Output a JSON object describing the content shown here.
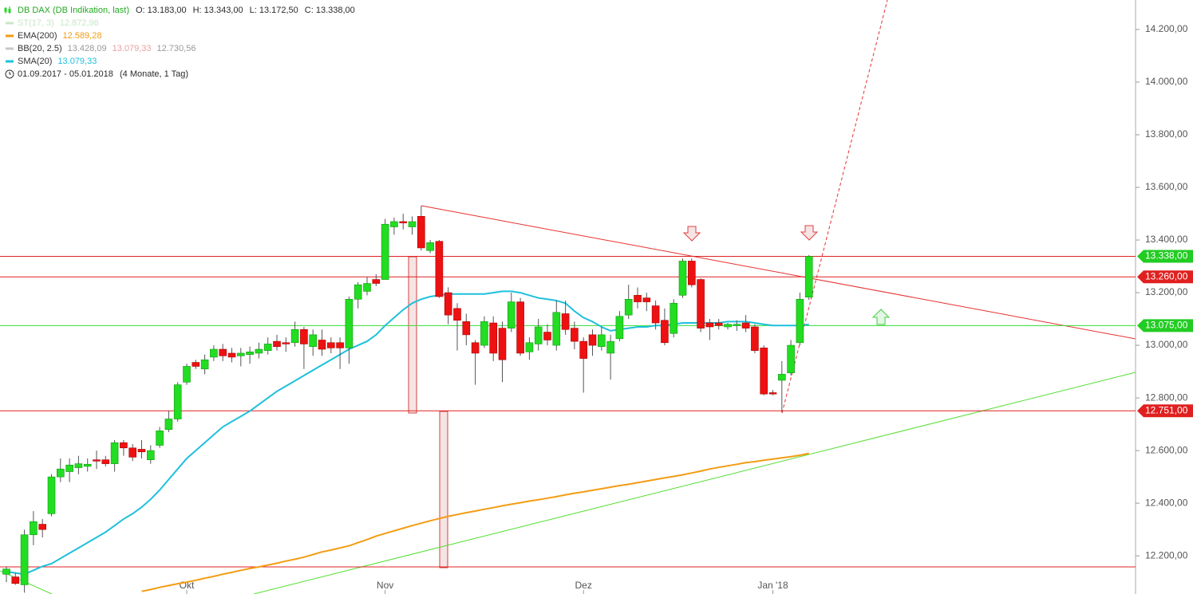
{
  "chart_data": {
    "type": "candlestick",
    "title": "DB DAX (DB Indikation, last)",
    "ohlc_labels": [
      "O: 13.183,00",
      "H: 13.343,00",
      "L: 13.172,50",
      "C: 13.338,00"
    ],
    "indicators": [
      {
        "name": "ST(17, 3)",
        "label": "12.872,96",
        "color": "#c8e6c8"
      },
      {
        "name": "EMA(200)",
        "label": "12.589,28",
        "color": "#f39c12"
      },
      {
        "name": "BB(20, 2.5)",
        "labels": [
          "13.428,09",
          "13.079,33",
          "12.730,56"
        ],
        "color": "#c8c8c8"
      },
      {
        "name": "SMA(20)",
        "label": "13.079,33",
        "color": "#1ec0dc"
      }
    ],
    "period": "01.09.2017 - 05.01.2018",
    "period_note": "(4 Monate, 1 Tag)",
    "categories": [
      null,
      null,
      null,
      null,
      null,
      null,
      null,
      null,
      null,
      null,
      null,
      null,
      null,
      null,
      null,
      null,
      null,
      null,
      null,
      null,
      "Okt",
      null,
      null,
      null,
      null,
      null,
      null,
      null,
      null,
      null,
      null,
      null,
      null,
      null,
      null,
      null,
      null,
      null,
      null,
      null,
      null,
      null,
      "Nov",
      null,
      null,
      null,
      null,
      null,
      null,
      null,
      null,
      null,
      null,
      null,
      null,
      null,
      null,
      null,
      null,
      null,
      null,
      null,
      null,
      null,
      "Dez",
      null,
      null,
      null,
      null,
      null,
      null,
      null,
      null,
      null,
      null,
      null,
      null,
      null,
      null,
      null,
      null,
      null,
      null,
      null,
      null,
      "Jan '18",
      null,
      null,
      null,
      null
    ],
    "open": [
      12130,
      12120,
      12090,
      12280,
      12320,
      12360,
      12500,
      12520,
      12535,
      12540,
      12565,
      12565,
      12550,
      12630,
      12610,
      12605,
      12565,
      12620,
      12680,
      12720,
      12860,
      12935,
      12910,
      12955,
      12985,
      12970,
      12960,
      12965,
      12970,
      12980,
      13015,
      13010,
      13010,
      13060,
      12995,
      13020,
      13010,
      13010,
      12990,
      13175,
      13205,
      13250,
      13250,
      13450,
      13470,
      13450,
      13490,
      13360,
      13395,
      13200,
      13140,
      13090,
      13010,
      13000,
      13085,
      13065,
      13065,
      13165,
      12975,
      13005,
      13050,
      13000,
      13120,
      13065,
      13015,
      13040,
      12995,
      12970,
      13025,
      13115,
      13190,
      13180,
      13150,
      13095,
      13045,
      13190,
      13320,
      13250,
      13085,
      13085,
      13070,
      13075,
      13085,
      13070,
      12990,
      12820,
      12867,
      12895,
      13010,
      13183
    ],
    "high": [
      12160,
      12135,
      12300,
      12370,
      12340,
      12510,
      12570,
      12570,
      12580,
      12570,
      12600,
      12580,
      12640,
      12640,
      12625,
      12640,
      12620,
      12690,
      12750,
      12860,
      12930,
      12945,
      12965,
      13000,
      13005,
      12990,
      12990,
      12995,
      13010,
      13030,
      13040,
      13030,
      13090,
      13070,
      13060,
      13060,
      13030,
      13030,
      13185,
      13240,
      13260,
      13270,
      13480,
      13485,
      13500,
      13490,
      13530,
      13400,
      13400,
      13220,
      13160,
      13120,
      13020,
      13110,
      13110,
      13090,
      13200,
      13180,
      13030,
      13100,
      13080,
      13170,
      13170,
      13090,
      13030,
      13060,
      13070,
      13040,
      13130,
      13230,
      13220,
      13200,
      13170,
      13140,
      13175,
      13330,
      13330,
      13255,
      13100,
      13100,
      13085,
      13095,
      13115,
      13080,
      13000,
      12830,
      12940,
      13020,
      13200,
      13343
    ],
    "low": [
      12100,
      12090,
      12060,
      12240,
      12270,
      12350,
      12480,
      12480,
      12510,
      12520,
      12530,
      12540,
      12520,
      12580,
      12560,
      12570,
      12550,
      12610,
      12670,
      12710,
      12850,
      12910,
      12890,
      12940,
      12940,
      12935,
      12920,
      12930,
      12950,
      12965,
      12980,
      12975,
      12995,
      12910,
      12960,
      12960,
      12970,
      12910,
      12930,
      13140,
      13190,
      13225,
      13250,
      13420,
      13440,
      13420,
      13360,
      13350,
      13180,
      13080,
      12980,
      13000,
      12850,
      12990,
      12940,
      12860,
      13050,
      12960,
      12945,
      12980,
      13000,
      12980,
      13040,
      12985,
      12820,
      12960,
      12980,
      12870,
      13015,
      13100,
      13140,
      13130,
      13060,
      13000,
      13030,
      13180,
      13220,
      13050,
      13020,
      13060,
      13060,
      13055,
      13050,
      12970,
      12810,
      12810,
      12745,
      12885,
      13000,
      13172.5
    ],
    "close": [
      12150,
      12095,
      12280,
      12330,
      12300,
      12500,
      12530,
      12545,
      12550,
      12548,
      12560,
      12550,
      12630,
      12610,
      12575,
      12595,
      12600,
      12675,
      12720,
      12850,
      12920,
      12920,
      12945,
      12985,
      12960,
      12955,
      12970,
      12975,
      12985,
      13005,
      12995,
      13005,
      13060,
      13005,
      13040,
      12985,
      12990,
      12990,
      13175,
      13230,
      13235,
      13235,
      13460,
      13470,
      13465,
      13470,
      13370,
      13390,
      13185,
      13115,
      13095,
      13040,
      12970,
      13090,
      12970,
      12945,
      13165,
      12970,
      13010,
      13070,
      13020,
      13125,
      13060,
      13015,
      12950,
      13000,
      13040,
      13015,
      13110,
      13175,
      13165,
      13165,
      13085,
      13010,
      13160,
      13320,
      13230,
      13065,
      13070,
      13075,
      13080,
      13080,
      13065,
      12980,
      12815,
      12815,
      12890,
      13000,
      13175,
      13338
    ],
    "up_color": "#22dd22",
    "down_color": "#ee1111",
    "series": [
      {
        "name": "EMA(200)",
        "color": "#f39c12",
        "values": [
          null,
          null,
          null,
          null,
          null,
          null,
          null,
          null,
          null,
          null,
          null,
          null,
          null,
          null,
          null,
          12065,
          12072,
          12080,
          12087,
          12094,
          12100,
          12107,
          12115,
          12122,
          12130,
          12137,
          12145,
          12152,
          12158,
          12165,
          12172,
          12180,
          12187,
          12195,
          12205,
          12215,
          12222,
          12230,
          12238,
          12250,
          12262,
          12275,
          12285,
          12295,
          12305,
          12315,
          12324,
          12333,
          12342,
          12350,
          12357,
          12364,
          12370,
          12377,
          12383,
          12390,
          12396,
          12402,
          12408,
          12413,
          12419,
          12425,
          12432,
          12438,
          12443,
          12449,
          12455,
          12461,
          12467,
          12472,
          12478,
          12484,
          12490,
          12496,
          12502,
          12508,
          12515,
          12522,
          12530,
          12536,
          12542,
          12548,
          12554,
          12558,
          12563,
          12568,
          12572,
          12577,
          12582,
          12589.28
        ]
      },
      {
        "name": "SMA(20)",
        "color": "#1ec0dc",
        "values": [
          12140,
          12135,
          12130,
          12145,
          12160,
          12170,
          12190,
          12210,
          12230,
          12250,
          12270,
          12290,
          12315,
          12340,
          12360,
          12385,
          12415,
          12450,
          12490,
          12530,
          12570,
          12600,
          12630,
          12660,
          12690,
          12710,
          12730,
          12750,
          12775,
          12800,
          12825,
          12845,
          12865,
          12885,
          12905,
          12925,
          12945,
          12965,
          12985,
          13000,
          13015,
          13040,
          13075,
          13105,
          13135,
          13160,
          13175,
          13185,
          13190,
          13195,
          13195,
          13195,
          13195,
          13195,
          13200,
          13205,
          13205,
          13200,
          13190,
          13180,
          13175,
          13170,
          13160,
          13130,
          13105,
          13090,
          13070,
          13055,
          13060,
          13065,
          13070,
          13070,
          13075,
          13075,
          13080,
          13085,
          13085,
          13085,
          13085,
          13085,
          13090,
          13090,
          13090,
          13085,
          13080,
          13075,
          13075,
          13075,
          13075,
          13079.33
        ]
      }
    ],
    "levels": [
      {
        "value": 13338,
        "label": "13.338,00",
        "color": "#22cc22",
        "line_color": "#e02020"
      },
      {
        "value": 13260,
        "label": "13.260,00",
        "color": "#e02020",
        "line_color": "#e02020"
      },
      {
        "value": 13075,
        "label": "13.075,00",
        "color": "#22cc22",
        "line_color": "#33dd33"
      },
      {
        "value": 12751,
        "label": "12.751,00",
        "color": "#e02020",
        "line_color": "#e02020"
      },
      {
        "value": 12158,
        "line_color": "#e02020"
      }
    ],
    "ylim": [
      12055,
      14312
    ],
    "yticks": [
      {
        "value": 12200,
        "label": "12.200,00"
      },
      {
        "value": 12400,
        "label": "12.400,00"
      },
      {
        "value": 12600,
        "label": "12.600,00"
      },
      {
        "value": 12800,
        "label": "12.800,00"
      },
      {
        "value": 13000,
        "label": "13.000,00"
      },
      {
        "value": 13200,
        "label": "13.200,00"
      },
      {
        "value": 13400,
        "label": "13.400,00"
      },
      {
        "value": 13600,
        "label": "13.600,00"
      },
      {
        "value": 13800,
        "label": "13.800,00"
      },
      {
        "value": 14000,
        "label": "14.000,00"
      },
      {
        "value": 14200,
        "label": "14.200,00"
      }
    ]
  }
}
